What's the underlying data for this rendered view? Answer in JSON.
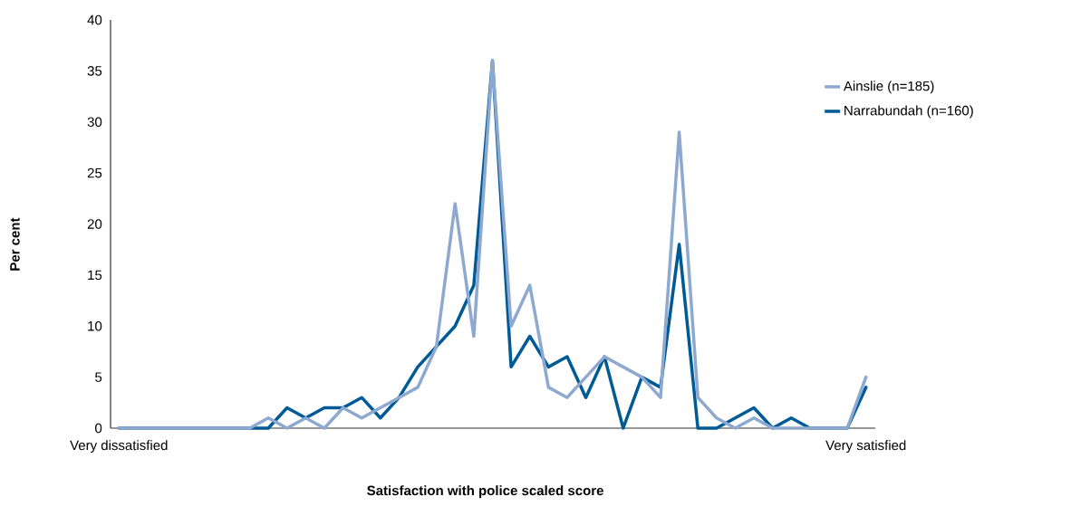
{
  "chart_data": {
    "type": "line",
    "xlabel": "Satisfaction with police scaled score",
    "ylabel": "Per cent",
    "categories": [
      "Very dissatisfied",
      null,
      null,
      null,
      null,
      null,
      null,
      null,
      null,
      null,
      null,
      null,
      null,
      null,
      null,
      null,
      null,
      null,
      null,
      null,
      null,
      null,
      null,
      null,
      null,
      null,
      null,
      null,
      null,
      null,
      null,
      null,
      null,
      null,
      null,
      null,
      null,
      null,
      null,
      null,
      "Very satisfied"
    ],
    "series": [
      {
        "name": "Ainslie (n=185)",
        "color": "#8ea9d0",
        "values": [
          0,
          0,
          0,
          0,
          0,
          0,
          0,
          0,
          1,
          0,
          1,
          0,
          2,
          1,
          2,
          3,
          4,
          8,
          22,
          9,
          36,
          10,
          14,
          4,
          3,
          5,
          7,
          6,
          5,
          3,
          29,
          3,
          1,
          0,
          1,
          0,
          0,
          0,
          0,
          0,
          5
        ]
      },
      {
        "name": "Narrabundah (n=160)",
        "color": "#005a96",
        "values": [
          0,
          0,
          0,
          0,
          0,
          0,
          0,
          0,
          0,
          2,
          1,
          2,
          2,
          3,
          1,
          3,
          6,
          8,
          10,
          14,
          36,
          6,
          9,
          6,
          7,
          3,
          7,
          0,
          5,
          4,
          18,
          0,
          0,
          1,
          2,
          0,
          1,
          0,
          0,
          0,
          4
        ]
      }
    ],
    "ylim": [
      0,
      40
    ],
    "yticks": [
      0,
      5,
      10,
      15,
      20,
      25,
      30,
      35,
      40
    ],
    "grid": false,
    "legend": "right",
    "marker": "none",
    "line_style": "solid"
  }
}
